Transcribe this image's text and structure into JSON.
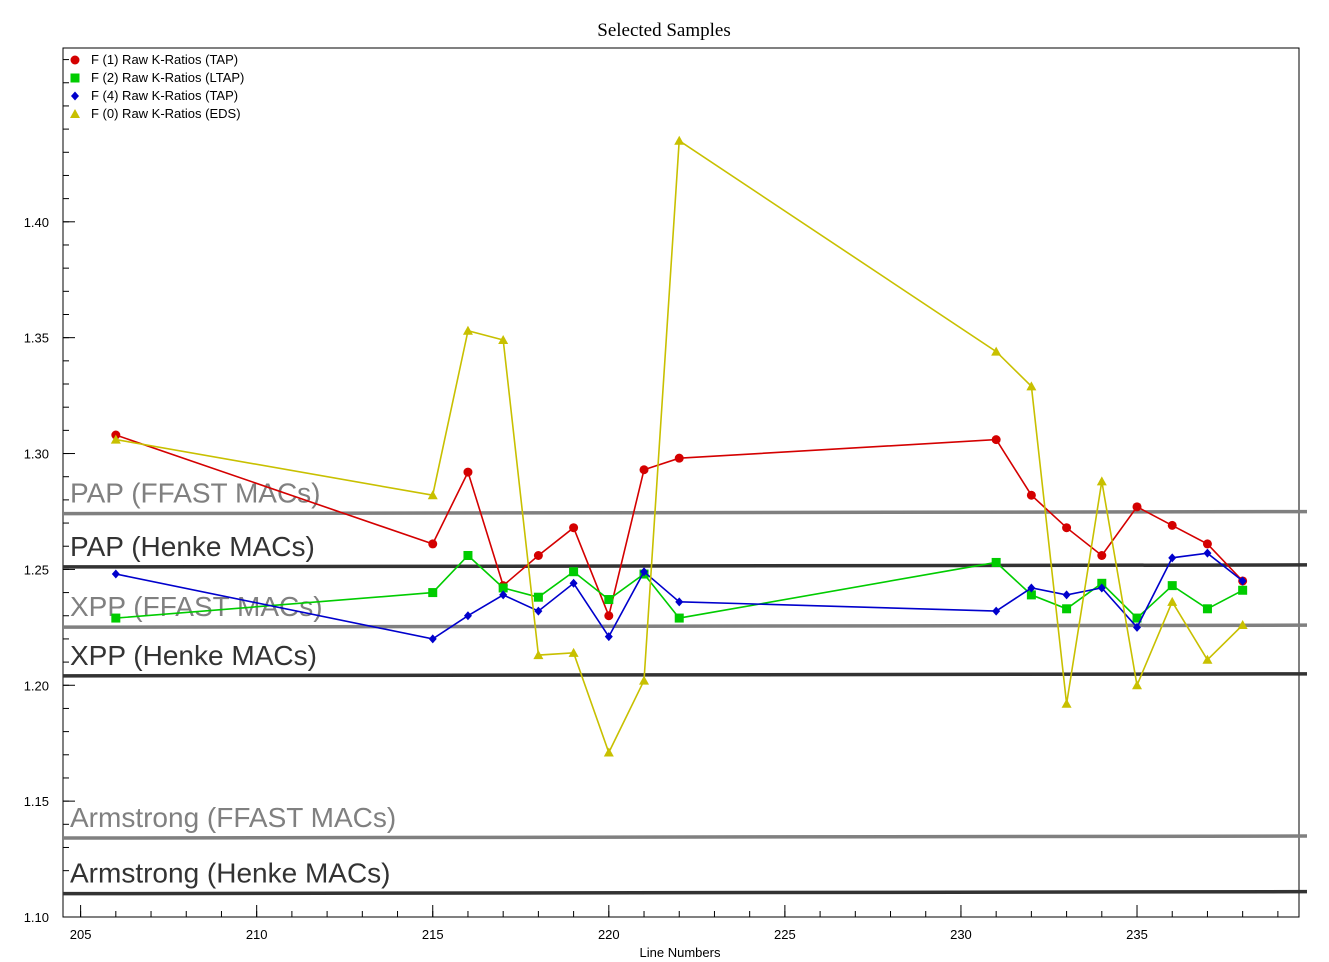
{
  "chart_data": {
    "type": "line",
    "title": "Selected Samples",
    "xlabel": "Line Numbers",
    "ylabel": "",
    "xlim": [
      204.5,
      239.6
    ],
    "ylim": [
      1.1,
      1.475
    ],
    "x_ticks": [
      205,
      210,
      215,
      220,
      225,
      230,
      235
    ],
    "y_ticks": [
      1.1,
      1.15,
      1.2,
      1.25,
      1.3,
      1.35,
      1.4
    ],
    "y_tick_labels": [
      "1.10",
      "1.15",
      "1.20",
      "1.25",
      "1.30",
      "1.35",
      "1.40"
    ],
    "grid": false,
    "legend_position": "top-left",
    "series": [
      {
        "name": "F  (1) Raw K-Ratios (TAP)",
        "color": "#d40000",
        "marker": "circle",
        "x": [
          206,
          215,
          216,
          217,
          218,
          219,
          220,
          221,
          222,
          231,
          232,
          233,
          234,
          235,
          236,
          237,
          238
        ],
        "values": [
          1.308,
          1.261,
          1.292,
          1.243,
          1.256,
          1.268,
          1.23,
          1.293,
          1.298,
          1.306,
          1.282,
          1.268,
          1.256,
          1.277,
          1.269,
          1.261,
          1.245
        ]
      },
      {
        "name": "F  (2) Raw K-Ratios (LTAP)",
        "color": "#00cc00",
        "marker": "square",
        "x": [
          206,
          215,
          216,
          217,
          218,
          219,
          220,
          221,
          222,
          231,
          232,
          233,
          234,
          235,
          236,
          237,
          238
        ],
        "values": [
          1.229,
          1.24,
          1.256,
          1.242,
          1.238,
          1.249,
          1.237,
          1.248,
          1.229,
          1.253,
          1.239,
          1.233,
          1.244,
          1.229,
          1.243,
          1.233,
          1.241
        ]
      },
      {
        "name": "F  (4) Raw K-Ratios (TAP)",
        "color": "#0000cc",
        "marker": "diamond",
        "x": [
          206,
          215,
          216,
          217,
          218,
          219,
          220,
          221,
          222,
          231,
          232,
          233,
          234,
          235,
          236,
          237,
          238
        ],
        "values": [
          1.248,
          1.22,
          1.23,
          1.239,
          1.232,
          1.244,
          1.221,
          1.249,
          1.236,
          1.232,
          1.242,
          1.239,
          1.242,
          1.225,
          1.255,
          1.257,
          1.245
        ]
      },
      {
        "name": "F  (0) Raw K-Ratios (EDS)",
        "color": "#c8c000",
        "marker": "triangle",
        "x": [
          206,
          215,
          216,
          217,
          218,
          219,
          220,
          221,
          222,
          231,
          232,
          233,
          234,
          235,
          236,
          237,
          238
        ],
        "values": [
          1.306,
          1.282,
          1.353,
          1.349,
          1.213,
          1.214,
          1.171,
          1.202,
          1.435,
          1.344,
          1.329,
          1.192,
          1.288,
          1.2,
          1.236,
          1.211,
          1.226
        ]
      }
    ],
    "reference_lines": [
      {
        "label": "PAP (FFAST MACs)",
        "value": 1.2745,
        "color": "#808080"
      },
      {
        "label": "PAP (Henke MACs)",
        "value": 1.2515,
        "color": "#333333"
      },
      {
        "label": "XPP (FFAST MACs)",
        "value": 1.2255,
        "color": "#808080"
      },
      {
        "label": "XPP (Henke MACs)",
        "value": 1.2045,
        "color": "#333333"
      },
      {
        "label": "Armstrong (FFAST MACs)",
        "value": 1.1345,
        "color": "#808080"
      },
      {
        "label": "Armstrong (Henke MACs)",
        "value": 1.1105,
        "color": "#333333"
      }
    ]
  }
}
